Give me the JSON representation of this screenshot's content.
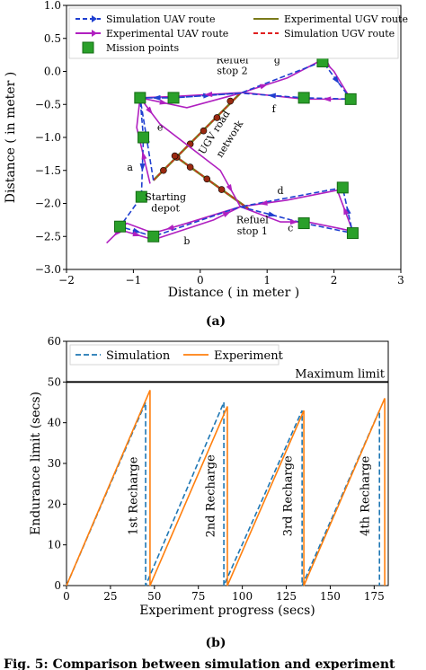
{
  "figure": {
    "panel_a_label": "(a)",
    "panel_b_label": "(b)",
    "caption_fragment": "Fig. 5: Comparison between simulation and experiment"
  },
  "colors": {
    "sim_uav": "#1f3fd0",
    "exp_uav": "#b020c0",
    "exp_ugv": "#7a7a1a",
    "sim_ugv": "#e02020",
    "mission": "#2aa02a",
    "node": "#9a2a10",
    "sim_endurance": "#1f77b4",
    "exp_endurance": "#ff7f0e"
  },
  "chart_data": [
    {
      "type": "line",
      "xlabel": "Distance ( in meter )",
      "ylabel": "Distance ( in meter )",
      "xlim": [
        -2,
        3
      ],
      "ylim": [
        -3.0,
        1.0
      ],
      "xticks": [
        -2,
        -1,
        0,
        1,
        2,
        3
      ],
      "yticks": [
        -3.0,
        -2.5,
        -2.0,
        -1.5,
        -1.0,
        -0.5,
        0.0,
        0.5,
        1.0
      ],
      "xtick_labels": [
        "−2",
        "−1",
        "0",
        "1",
        "2",
        "3"
      ],
      "ytick_labels": [
        "−3.0",
        "−2.5",
        "−2.0",
        "−1.5",
        "−1.0",
        "−0.5",
        "0.0",
        "0.5",
        "1.0"
      ],
      "legend": [
        {
          "key": "sim_uav",
          "label": "Simulation UAV route"
        },
        {
          "key": "exp_ugv",
          "label": "Experimental UGV route"
        },
        {
          "key": "exp_uav",
          "label": "Experimental UAV route"
        },
        {
          "key": "sim_ugv",
          "label": "Simulation UGV route"
        },
        {
          "key": "mission",
          "label": "Mission points"
        }
      ],
      "mission_points": [
        [
          -0.9,
          -0.4
        ],
        [
          -0.4,
          -0.4
        ],
        [
          1.55,
          -0.4
        ],
        [
          2.25,
          -0.42
        ],
        [
          1.83,
          0.15
        ],
        [
          -0.85,
          -1.0
        ],
        [
          -0.88,
          -1.9
        ],
        [
          -1.2,
          -2.35
        ],
        [
          -0.7,
          -2.5
        ],
        [
          1.55,
          -2.3
        ],
        [
          2.13,
          -1.76
        ],
        [
          2.28,
          -2.45
        ]
      ],
      "ugv_network": [
        [
          -0.7,
          -1.65
        ],
        [
          0.6,
          -0.33
        ]
      ],
      "ugv_network_2": [
        [
          -0.38,
          -1.28
        ],
        [
          0.72,
          -2.08
        ]
      ],
      "ugv_nodes": [
        [
          -0.55,
          -1.5
        ],
        [
          -0.35,
          -1.3
        ],
        [
          -0.15,
          -1.1
        ],
        [
          0.05,
          -0.9
        ],
        [
          0.25,
          -0.7
        ],
        [
          0.45,
          -0.45
        ],
        [
          -0.38,
          -1.28
        ],
        [
          -0.15,
          -1.45
        ],
        [
          0.1,
          -1.63
        ],
        [
          0.32,
          -1.79
        ]
      ],
      "sim_uav_route": [
        [
          -0.7,
          -1.65
        ],
        [
          -0.9,
          -0.4
        ],
        [
          -0.4,
          -0.4
        ],
        [
          0.6,
          -0.33
        ],
        [
          1.83,
          0.15
        ],
        [
          2.25,
          -0.42
        ],
        [
          1.55,
          -0.4
        ],
        [
          0.6,
          -0.33
        ],
        [
          -0.4,
          -0.4
        ],
        [
          -0.9,
          -0.4
        ],
        [
          -0.85,
          -1.0
        ],
        [
          -0.88,
          -1.9
        ],
        [
          -1.2,
          -2.35
        ],
        [
          -0.7,
          -2.5
        ],
        [
          0.6,
          -2.05
        ],
        [
          1.55,
          -2.3
        ],
        [
          2.28,
          -2.45
        ],
        [
          2.13,
          -1.76
        ],
        [
          0.6,
          -2.05
        ]
      ],
      "exp_uav_route": [
        [
          -0.75,
          -1.7
        ],
        [
          -0.95,
          -0.85
        ],
        [
          -0.9,
          -0.4
        ],
        [
          -0.2,
          -0.55
        ],
        [
          0.6,
          -0.33
        ],
        [
          1.3,
          -0.1
        ],
        [
          1.83,
          0.18
        ],
        [
          2.0,
          0.0
        ],
        [
          2.25,
          -0.42
        ],
        [
          1.55,
          -0.42
        ],
        [
          0.65,
          -0.32
        ],
        [
          -0.4,
          -0.38
        ],
        [
          -0.9,
          -0.4
        ],
        [
          -0.6,
          -0.8
        ],
        [
          0.3,
          -1.5
        ],
        [
          0.6,
          -2.05
        ],
        [
          -0.2,
          -2.3
        ],
        [
          -0.7,
          -2.45
        ],
        [
          -1.1,
          -2.3
        ],
        [
          -1.4,
          -2.6
        ],
        [
          -1.2,
          -2.4
        ],
        [
          -0.7,
          -2.55
        ],
        [
          0.2,
          -2.25
        ],
        [
          0.6,
          -2.05
        ],
        [
          1.2,
          -2.28
        ],
        [
          1.6,
          -2.28
        ],
        [
          2.28,
          -2.42
        ],
        [
          2.05,
          -1.8
        ],
        [
          1.3,
          -1.95
        ],
        [
          0.6,
          -2.05
        ]
      ],
      "annotations": [
        {
          "text": "Refuel",
          "x": 0.48,
          "y": 0.12
        },
        {
          "text": "stop 2",
          "x": 0.48,
          "y": -0.04
        },
        {
          "text": "Refuel",
          "x": 0.78,
          "y": -2.3
        },
        {
          "text": "stop 1",
          "x": 0.78,
          "y": -2.47
        },
        {
          "text": "Starting",
          "x": -0.52,
          "y": -1.95
        },
        {
          "text": "depot",
          "x": -0.52,
          "y": -2.12
        },
        {
          "text": "g",
          "x": 1.15,
          "y": 0.12
        },
        {
          "text": "f",
          "x": 1.1,
          "y": -0.62
        },
        {
          "text": "e",
          "x": -0.6,
          "y": -0.9
        },
        {
          "text": "a",
          "x": -1.05,
          "y": -1.5
        },
        {
          "text": "b",
          "x": -0.2,
          "y": -2.62
        },
        {
          "text": "c",
          "x": 1.35,
          "y": -2.42
        },
        {
          "text": "d",
          "x": 1.2,
          "y": -1.86
        },
        {
          "text": "UGV road",
          "x": 0.25,
          "y": -0.95,
          "rot": -58
        },
        {
          "text": "network",
          "x": 0.48,
          "y": -1.05,
          "rot": -58
        }
      ]
    },
    {
      "type": "line",
      "xlabel": "Experiment progress (secs)",
      "ylabel": "Endurance limit (secs)",
      "xlim": [
        0,
        183
      ],
      "ylim": [
        0,
        60
      ],
      "xticks": [
        0,
        25,
        50,
        75,
        100,
        125,
        150,
        175
      ],
      "yticks": [
        0,
        10,
        20,
        30,
        40,
        50,
        60
      ],
      "legend": [
        {
          "key": "sim_endurance",
          "label": "Simulation",
          "dashed": true
        },
        {
          "key": "exp_endurance",
          "label": "Experiment",
          "dashed": false
        }
      ],
      "max_limit": {
        "value": 50,
        "label": "Maximum limit"
      },
      "series": [
        {
          "name": "Simulation",
          "key": "sim_endurance",
          "x": [
            0,
            45,
            45,
            89.5,
            89.5,
            134,
            134,
            178,
            178
          ],
          "y": [
            0,
            45,
            0,
            45,
            0,
            43,
            0,
            43,
            0
          ]
        },
        {
          "name": "Experiment",
          "key": "exp_endurance",
          "x": [
            0,
            47.5,
            47.5,
            91.5,
            91.5,
            135,
            135,
            181,
            181
          ],
          "y": [
            0,
            48,
            0,
            44,
            0,
            43,
            0,
            46,
            0
          ]
        }
      ],
      "recharge_labels": [
        {
          "text": "1st Recharge",
          "x": 40,
          "y": 22
        },
        {
          "text": "2nd Recharge",
          "x": 84,
          "y": 22
        },
        {
          "text": "3rd Recharge",
          "x": 128,
          "y": 22
        },
        {
          "text": "4th Recharge",
          "x": 172,
          "y": 22
        }
      ]
    }
  ]
}
